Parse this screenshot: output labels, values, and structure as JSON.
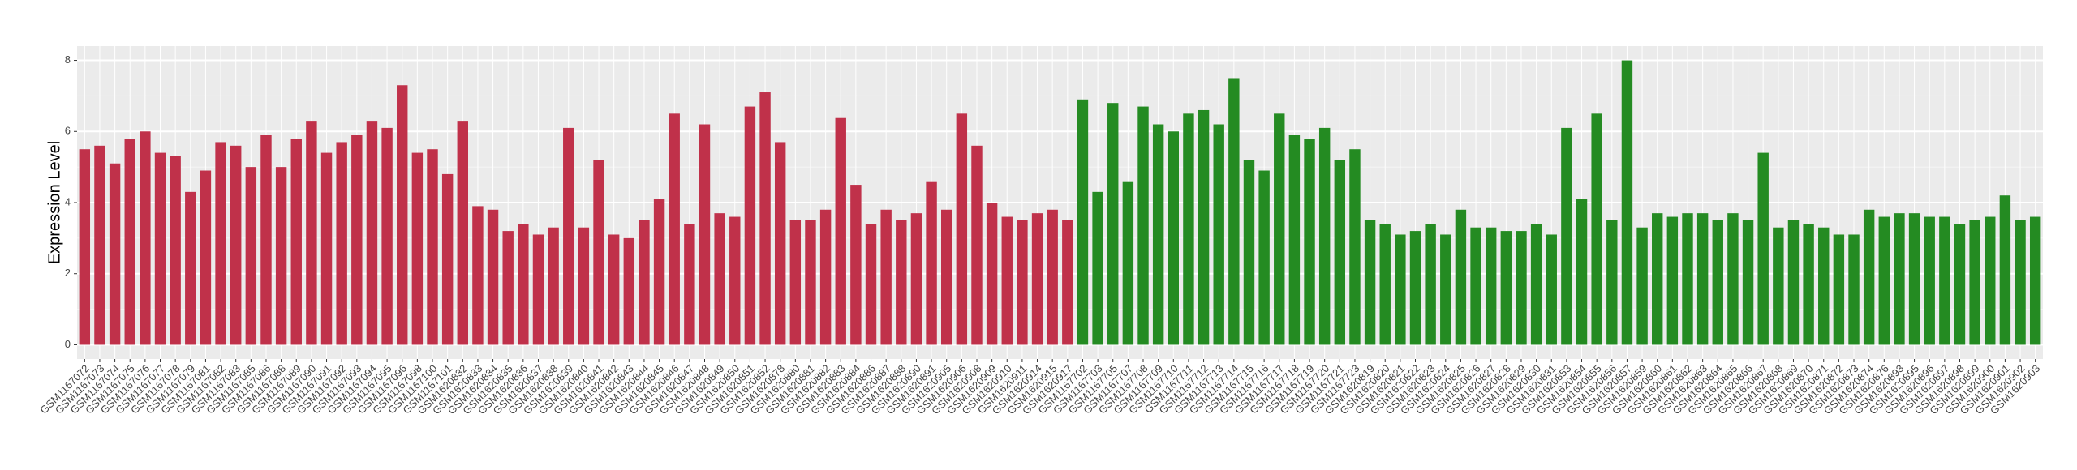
{
  "chart_data": {
    "type": "bar",
    "y_label": "Expression Level",
    "categories": [
      "GSM1167072",
      "GSM1167073",
      "GSM1167074",
      "GSM1167075",
      "GSM1167076",
      "GSM1167077",
      "GSM1167078",
      "GSM1167079",
      "GSM1167081",
      "GSM1167082",
      "GSM1167083",
      "GSM1167085",
      "GSM1167086",
      "GSM1167088",
      "GSM1167089",
      "GSM1167090",
      "GSM1167091",
      "GSM1167092",
      "GSM1167093",
      "GSM1167094",
      "GSM1167095",
      "GSM1167096",
      "GSM1167098",
      "GSM1167100",
      "GSM1167101",
      "GSM1620832",
      "GSM1620833",
      "GSM1620834",
      "GSM1620835",
      "GSM1620836",
      "GSM1620837",
      "GSM1620838",
      "GSM1620839",
      "GSM1620840",
      "GSM1620841",
      "GSM1620842",
      "GSM1620843",
      "GSM1620844",
      "GSM1620845",
      "GSM1620846",
      "GSM1620847",
      "GSM1620848",
      "GSM1620849",
      "GSM1620850",
      "GSM1620851",
      "GSM1620852",
      "GSM1620878",
      "GSM1620880",
      "GSM1620881",
      "GSM1620882",
      "GSM1620883",
      "GSM1620884",
      "GSM1620886",
      "GSM1620887",
      "GSM1620888",
      "GSM1620890",
      "GSM1620891",
      "GSM1620905",
      "GSM1620906",
      "GSM1620908",
      "GSM1620909",
      "GSM1620910",
      "GSM1620911",
      "GSM1620914",
      "GSM1620915",
      "GSM1620917",
      "GSM1167702",
      "GSM1167703",
      "GSM1167705",
      "GSM1167707",
      "GSM1167708",
      "GSM1167709",
      "GSM1167710",
      "GSM1167711",
      "GSM1167712",
      "GSM1167713",
      "GSM1167714",
      "GSM1167715",
      "GSM1167716",
      "GSM1167717",
      "GSM1167718",
      "GSM1167719",
      "GSM1167720",
      "GSM1167721",
      "GSM1167723",
      "GSM1620819",
      "GSM1620820",
      "GSM1620821",
      "GSM1620822",
      "GSM1620823",
      "GSM1620824",
      "GSM1620825",
      "GSM1620826",
      "GSM1620827",
      "GSM1620828",
      "GSM1620829",
      "GSM1620830",
      "GSM1620831",
      "GSM1620853",
      "GSM1620854",
      "GSM1620855",
      "GSM1620856",
      "GSM1620857",
      "GSM1620859",
      "GSM1620860",
      "GSM1620861",
      "GSM1620862",
      "GSM1620863",
      "GSM1620864",
      "GSM1620865",
      "GSM1620866",
      "GSM1620867",
      "GSM1620868",
      "GSM1620869",
      "GSM1620870",
      "GSM1620871",
      "GSM1620872",
      "GSM1620873",
      "GSM1620874",
      "GSM1620876",
      "GSM1620893",
      "GSM1620895",
      "GSM1620896",
      "GSM1620897",
      "GSM1620898",
      "GSM1620899",
      "GSM1620900",
      "GSM1620901",
      "GSM1620902",
      "GSM1620903"
    ],
    "values": [
      5.5,
      5.6,
      5.1,
      5.8,
      6.0,
      5.4,
      5.3,
      4.3,
      4.9,
      5.7,
      5.6,
      5.0,
      5.9,
      5.0,
      5.8,
      6.3,
      5.4,
      5.7,
      5.9,
      6.3,
      6.1,
      7.3,
      5.4,
      5.5,
      4.8,
      6.3,
      3.9,
      3.8,
      3.2,
      3.4,
      3.1,
      3.3,
      6.1,
      3.3,
      5.2,
      3.1,
      3.0,
      3.5,
      4.1,
      6.5,
      3.4,
      6.2,
      3.7,
      3.6,
      6.7,
      7.1,
      5.7,
      3.5,
      3.5,
      3.8,
      6.4,
      4.5,
      3.4,
      3.8,
      3.5,
      3.7,
      4.6,
      3.8,
      6.5,
      5.6,
      4.0,
      3.6,
      3.5,
      3.7,
      3.8,
      3.5,
      6.9,
      4.3,
      6.8,
      4.6,
      6.7,
      6.2,
      6.0,
      6.5,
      6.6,
      6.2,
      7.5,
      5.2,
      4.9,
      6.5,
      5.9,
      5.8,
      6.1,
      5.2,
      5.5,
      3.5,
      3.4,
      3.1,
      3.2,
      3.4,
      3.1,
      3.8,
      3.3,
      3.3,
      3.2,
      3.2,
      3.4,
      3.1,
      6.1,
      4.1,
      6.5,
      3.5,
      8.0,
      3.3,
      3.7,
      3.6,
      3.7,
      3.7,
      3.5,
      3.7,
      3.5,
      5.4,
      3.3,
      3.5,
      3.4,
      3.3,
      3.1,
      3.1,
      3.8,
      3.6,
      3.7,
      3.7,
      3.6,
      3.6,
      3.4,
      3.5,
      3.6,
      4.2,
      3.5,
      3.6
    ],
    "colors": [
      "#c0314a",
      "#c0314a",
      "#c0314a",
      "#c0314a",
      "#c0314a",
      "#c0314a",
      "#c0314a",
      "#c0314a",
      "#c0314a",
      "#c0314a",
      "#c0314a",
      "#c0314a",
      "#c0314a",
      "#c0314a",
      "#c0314a",
      "#c0314a",
      "#c0314a",
      "#c0314a",
      "#c0314a",
      "#c0314a",
      "#c0314a",
      "#c0314a",
      "#c0314a",
      "#c0314a",
      "#c0314a",
      "#c0314a",
      "#c0314a",
      "#c0314a",
      "#c0314a",
      "#c0314a",
      "#c0314a",
      "#c0314a",
      "#c0314a",
      "#c0314a",
      "#c0314a",
      "#c0314a",
      "#c0314a",
      "#c0314a",
      "#c0314a",
      "#c0314a",
      "#c0314a",
      "#c0314a",
      "#c0314a",
      "#c0314a",
      "#c0314a",
      "#c0314a",
      "#c0314a",
      "#c0314a",
      "#c0314a",
      "#c0314a",
      "#c0314a",
      "#c0314a",
      "#c0314a",
      "#c0314a",
      "#c0314a",
      "#c0314a",
      "#c0314a",
      "#c0314a",
      "#c0314a",
      "#c0314a",
      "#c0314a",
      "#c0314a",
      "#c0314a",
      "#c0314a",
      "#c0314a",
      "#c0314a",
      "#248b22",
      "#248b22",
      "#248b22",
      "#248b22",
      "#248b22",
      "#248b22",
      "#248b22",
      "#248b22",
      "#248b22",
      "#248b22",
      "#248b22",
      "#248b22",
      "#248b22",
      "#248b22",
      "#248b22",
      "#248b22",
      "#248b22",
      "#248b22",
      "#248b22",
      "#248b22",
      "#248b22",
      "#248b22",
      "#248b22",
      "#248b22",
      "#248b22",
      "#248b22",
      "#248b22",
      "#248b22",
      "#248b22",
      "#248b22",
      "#248b22",
      "#248b22",
      "#248b22",
      "#248b22",
      "#248b22",
      "#248b22",
      "#248b22",
      "#248b22",
      "#248b22",
      "#248b22",
      "#248b22",
      "#248b22",
      "#248b22",
      "#248b22",
      "#248b22",
      "#248b22",
      "#248b22",
      "#248b22",
      "#248b22",
      "#248b22",
      "#248b22",
      "#248b22",
      "#248b22",
      "#248b22",
      "#248b22",
      "#248b22",
      "#248b22",
      "#248b22",
      "#248b22",
      "#248b22",
      "#248b22",
      "#248b22",
      "#248b22",
      "#248b22"
    ],
    "ylim": [
      -0.4,
      8.4
    ],
    "yticks": [
      0,
      2,
      4,
      6,
      8
    ],
    "grid": true
  }
}
